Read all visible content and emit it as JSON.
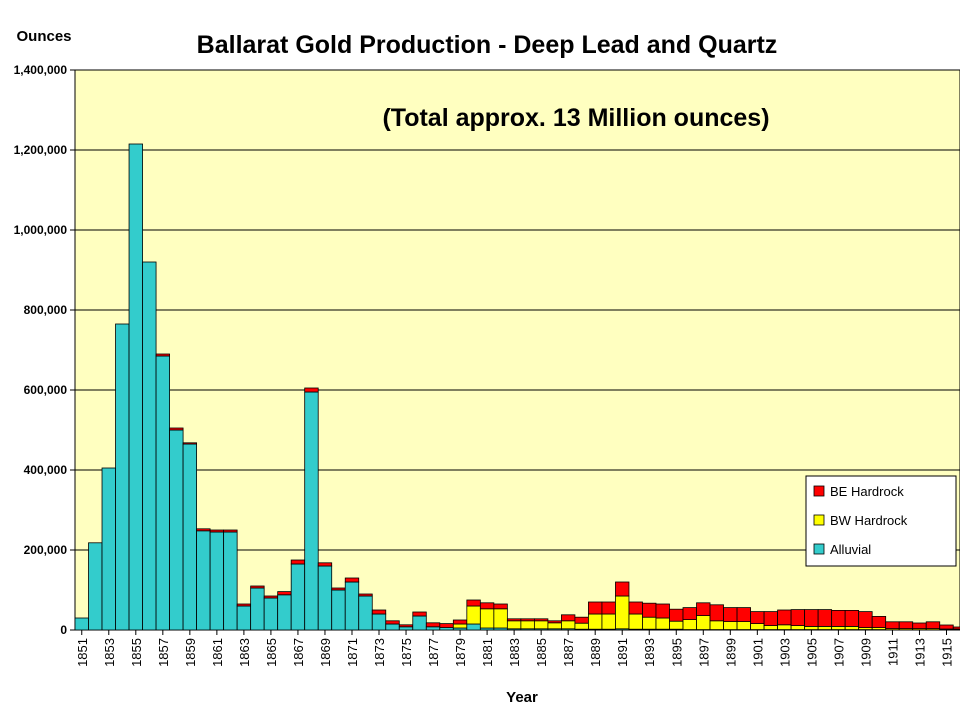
{
  "chart_data": {
    "type": "bar",
    "stacked": true,
    "title": "Ballarat Gold Production - Deep Lead and Quartz",
    "annotation": "(Total approx. 13 Million ounces)",
    "ylabel": "Ounces",
    "xlabel": "Year",
    "ylim": [
      0,
      1400000
    ],
    "yticks": [
      0,
      200000,
      400000,
      600000,
      800000,
      1000000,
      1200000,
      1400000
    ],
    "ytick_labels": [
      "0",
      "200,000",
      "400,000",
      "600,000",
      "800,000",
      "1,000,000",
      "1,200,000",
      "1,400,000"
    ],
    "grid": true,
    "background": "#FFFFC0",
    "legend_position": "lower-right",
    "categories": [
      "1851",
      "1852",
      "1853",
      "1854",
      "1855",
      "1856",
      "1857",
      "1858",
      "1859",
      "1860",
      "1861",
      "1862",
      "1863",
      "1864",
      "1865",
      "1866",
      "1867",
      "1868",
      "1869",
      "1870",
      "1871",
      "1872",
      "1873",
      "1874",
      "1875",
      "1876",
      "1877",
      "1878",
      "1879",
      "1880",
      "1881",
      "1882",
      "1883",
      "1884",
      "1885",
      "1886",
      "1887",
      "1888",
      "1889",
      "1890",
      "1891",
      "1892",
      "1893",
      "1894",
      "1895",
      "1896",
      "1897",
      "1898",
      "1899",
      "1900",
      "1901",
      "1902",
      "1903",
      "1904",
      "1905",
      "1906",
      "1907",
      "1908",
      "1909",
      "1910",
      "1911",
      "1912",
      "1913",
      "1914",
      "1915",
      "1916"
    ],
    "x_tick_labels": [
      "1851",
      "1853",
      "1855",
      "1857",
      "1859",
      "1861",
      "1863",
      "1865",
      "1867",
      "1869",
      "1871",
      "1873",
      "1875",
      "1877",
      "1879",
      "1881",
      "1883",
      "1885",
      "1887",
      "1889",
      "1891",
      "1893",
      "1895",
      "1897",
      "1899",
      "1901",
      "1903",
      "1905",
      "1907",
      "1909",
      "1911",
      "1913",
      "1915"
    ],
    "series": [
      {
        "name": "Alluvial",
        "color": "#33CCCC",
        "values": [
          30000,
          218000,
          405000,
          765000,
          1215000,
          920000,
          685000,
          500000,
          465000,
          248000,
          245000,
          245000,
          60000,
          105000,
          80000,
          88000,
          165000,
          595000,
          160000,
          100000,
          120000,
          85000,
          40000,
          15000,
          8000,
          35000,
          8000,
          6000,
          5000,
          15000,
          5000,
          5000,
          3000,
          3000,
          3000,
          3000,
          3000,
          2000,
          2000,
          2000,
          3000,
          2000,
          2000,
          2000,
          2000,
          1000,
          1000,
          1000,
          1000,
          1000,
          1000,
          1000,
          1000,
          1000,
          1000,
          1000,
          1000,
          1000,
          1000,
          1000,
          500,
          500,
          500,
          500,
          500,
          500
        ]
      },
      {
        "name": "BW Hardrock",
        "color": "#FFFF00",
        "values": [
          0,
          0,
          0,
          0,
          0,
          0,
          0,
          0,
          0,
          0,
          0,
          0,
          0,
          0,
          0,
          0,
          0,
          0,
          0,
          0,
          0,
          0,
          0,
          0,
          0,
          0,
          0,
          0,
          10000,
          45000,
          48000,
          48000,
          20000,
          20000,
          20000,
          15000,
          20000,
          15000,
          38000,
          38000,
          82000,
          38000,
          30000,
          28000,
          20000,
          25000,
          35000,
          22000,
          20000,
          20000,
          15000,
          10000,
          12000,
          10000,
          8000,
          8000,
          8000,
          8000,
          5000,
          5000,
          3000,
          3000,
          3000,
          3000,
          2000,
          2000
        ]
      },
      {
        "name": "BE Hardrock",
        "color": "#FF0000",
        "values": [
          0,
          0,
          0,
          0,
          0,
          0,
          5000,
          5000,
          3000,
          5000,
          5000,
          5000,
          5000,
          5000,
          5000,
          8000,
          10000,
          10000,
          8000,
          5000,
          10000,
          5000,
          10000,
          8000,
          5000,
          10000,
          10000,
          10000,
          10000,
          15000,
          15000,
          12000,
          5000,
          5000,
          5000,
          5000,
          15000,
          15000,
          30000,
          30000,
          35000,
          30000,
          35000,
          35000,
          30000,
          30000,
          32000,
          40000,
          35000,
          35000,
          30000,
          35000,
          37000,
          40000,
          42000,
          42000,
          40000,
          40000,
          40000,
          28000,
          17000,
          17000,
          14000,
          17000,
          10000,
          5000
        ]
      }
    ]
  }
}
